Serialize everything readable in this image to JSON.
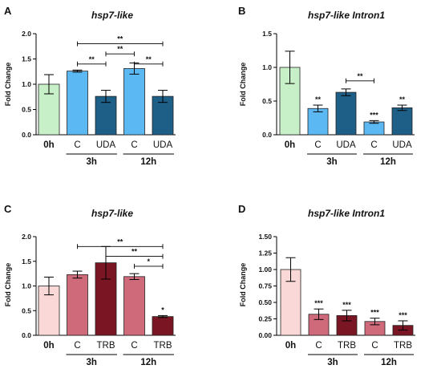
{
  "chart_data": [
    {
      "panel_label": "A",
      "type": "bar",
      "title": "hsp7-like",
      "ylabel": "Fold Change",
      "ylim": [
        0,
        2.0
      ],
      "yticks": [
        0,
        0.5,
        1.0,
        1.5,
        2.0
      ],
      "ytick_labels": [
        "0.0",
        "0.5",
        "1.0",
        "1.5",
        "2.0"
      ],
      "categories": [
        "0h",
        "C",
        "UDA",
        "C",
        "UDA"
      ],
      "groups": [
        {
          "label": "3h",
          "from": 1,
          "to": 2
        },
        {
          "label": "12h",
          "from": 3,
          "to": 4
        }
      ],
      "values": [
        1.0,
        1.26,
        0.76,
        1.31,
        0.76
      ],
      "errors": [
        0.19,
        0.02,
        0.12,
        0.11,
        0.12
      ],
      "colors": [
        "#c8f0c8",
        "#5cb8f2",
        "#1e5f88",
        "#5cb8f2",
        "#1e5f88"
      ],
      "annotations": [],
      "brackets": [
        {
          "from": 1,
          "to": 2,
          "y": 1.4,
          "label": "**"
        },
        {
          "from": 2,
          "to": 3,
          "y": 1.6,
          "label": "**"
        },
        {
          "from": 1,
          "to": 4,
          "y": 1.8,
          "label": "**"
        },
        {
          "from": 3,
          "to": 4,
          "y": 1.4,
          "label": "**"
        }
      ]
    },
    {
      "panel_label": "B",
      "type": "bar",
      "title": "hsp7-like Intron1",
      "ylabel": "Fold Change",
      "ylim": [
        0,
        1.5
      ],
      "yticks": [
        0,
        0.5,
        1.0,
        1.5
      ],
      "ytick_labels": [
        "0.0",
        "0.5",
        "1.0",
        "1.5"
      ],
      "categories": [
        "0h",
        "C",
        "UDA",
        "C",
        "UDA"
      ],
      "groups": [
        {
          "label": "3h",
          "from": 1,
          "to": 2
        },
        {
          "label": "12h",
          "from": 3,
          "to": 4
        }
      ],
      "values": [
        1.0,
        0.39,
        0.63,
        0.19,
        0.4
      ],
      "errors": [
        0.24,
        0.05,
        0.05,
        0.02,
        0.04
      ],
      "colors": [
        "#c8f0c8",
        "#5cb8f2",
        "#1e5f88",
        "#5cb8f2",
        "#1e5f88"
      ],
      "annotations": [
        {
          "bar": 1,
          "label": "**"
        },
        {
          "bar": 3,
          "label": "***"
        },
        {
          "bar": 4,
          "label": "**"
        }
      ],
      "brackets": [
        {
          "from": 2,
          "to": 3,
          "y": 0.8,
          "label": "**"
        }
      ]
    },
    {
      "panel_label": "C",
      "type": "bar",
      "title": "hsp7-like",
      "ylabel": "Fold Change",
      "ylim": [
        0,
        2.0
      ],
      "yticks": [
        0,
        0.5,
        1.0,
        1.5,
        2.0
      ],
      "ytick_labels": [
        "0.0",
        "0.5",
        "1.0",
        "1.5",
        "2.0"
      ],
      "categories": [
        "0h",
        "C",
        "TRB",
        "C",
        "TRB"
      ],
      "groups": [
        {
          "label": "3h",
          "from": 1,
          "to": 2
        },
        {
          "label": "12h",
          "from": 3,
          "to": 4
        }
      ],
      "values": [
        1.0,
        1.23,
        1.47,
        1.19,
        0.38
      ],
      "errors": [
        0.18,
        0.07,
        0.33,
        0.06,
        0.02
      ],
      "colors": [
        "#fad8d8",
        "#cf6a7b",
        "#7a1624",
        "#cf6a7b",
        "#7a1624"
      ],
      "annotations": [
        {
          "bar": 4,
          "label": "*"
        }
      ],
      "brackets": [
        {
          "from": 3,
          "to": 4,
          "y": 1.4,
          "label": "*"
        },
        {
          "from": 2,
          "to": 4,
          "y": 1.6,
          "label": "**"
        },
        {
          "from": 1,
          "to": 4,
          "y": 1.8,
          "label": "**"
        }
      ]
    },
    {
      "panel_label": "D",
      "type": "bar",
      "title": "hsp7-like Intron1",
      "ylabel": "Fold Change",
      "ylim": [
        0,
        1.5
      ],
      "yticks": [
        0,
        0.25,
        0.5,
        0.75,
        1.0,
        1.25,
        1.5
      ],
      "ytick_labels": [
        "0.00",
        "0.25",
        "0.50",
        "0.75",
        "1.00",
        "1.25",
        "1.50"
      ],
      "categories": [
        "0h",
        "C",
        "TRB",
        "C",
        "TRB"
      ],
      "groups": [
        {
          "label": "3h",
          "from": 1,
          "to": 2
        },
        {
          "label": "12h",
          "from": 3,
          "to": 4
        }
      ],
      "values": [
        1.0,
        0.32,
        0.3,
        0.21,
        0.15
      ],
      "errors": [
        0.18,
        0.08,
        0.08,
        0.05,
        0.07
      ],
      "colors": [
        "#fad8d8",
        "#cf6a7b",
        "#7a1624",
        "#cf6a7b",
        "#7a1624"
      ],
      "annotations": [
        {
          "bar": 1,
          "label": "***"
        },
        {
          "bar": 2,
          "label": "***"
        },
        {
          "bar": 3,
          "label": "***"
        },
        {
          "bar": 4,
          "label": "***"
        }
      ],
      "brackets": []
    }
  ]
}
